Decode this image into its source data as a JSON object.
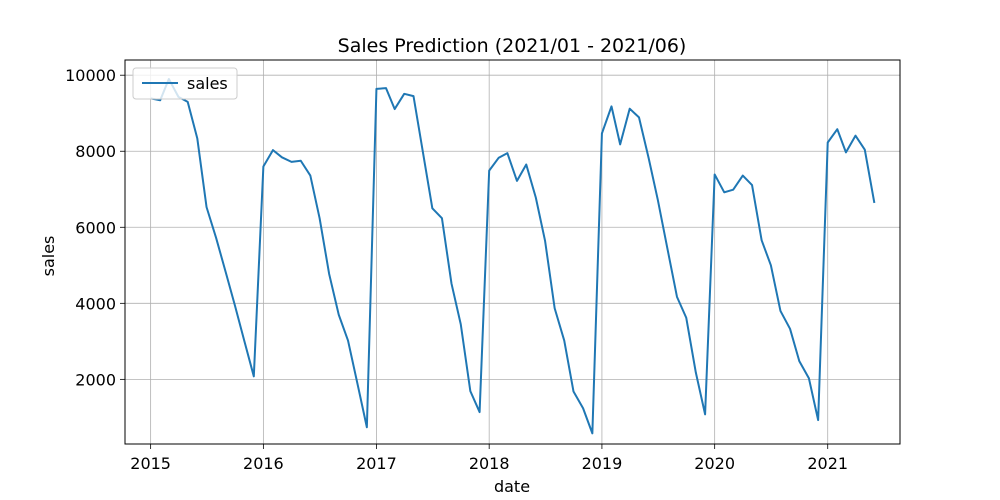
{
  "chart_data": {
    "type": "line",
    "title": "Sales Prediction (2021/01 - 2021/06)",
    "xlabel": "date",
    "ylabel": "sales",
    "x_ticks": [
      "2015",
      "2016",
      "2017",
      "2018",
      "2019",
      "2020",
      "2021"
    ],
    "y_ticks": [
      "2000",
      "4000",
      "6000",
      "8000",
      "10000"
    ],
    "xlim": [
      "2014-10-10",
      "2021-08-23"
    ],
    "ylim": [
      300,
      10400
    ],
    "grid": true,
    "legend": {
      "position": "top-left",
      "entries": [
        "sales"
      ]
    },
    "series_color": "#1f77b4",
    "series": [
      {
        "name": "sales",
        "x": [
          "2015-01-01",
          "2015-02-01",
          "2015-03-01",
          "2015-04-01",
          "2015-05-01",
          "2015-06-01",
          "2015-07-01",
          "2015-08-01",
          "2015-09-01",
          "2015-10-01",
          "2015-11-01",
          "2015-12-01",
          "2016-01-01",
          "2016-02-01",
          "2016-03-01",
          "2016-04-01",
          "2016-05-01",
          "2016-06-01",
          "2016-07-01",
          "2016-08-01",
          "2016-09-01",
          "2016-10-01",
          "2016-11-01",
          "2016-12-01",
          "2017-01-01",
          "2017-02-01",
          "2017-03-01",
          "2017-04-01",
          "2017-05-01",
          "2017-06-01",
          "2017-07-01",
          "2017-08-01",
          "2017-09-01",
          "2017-10-01",
          "2017-11-01",
          "2017-12-01",
          "2018-01-01",
          "2018-02-01",
          "2018-03-01",
          "2018-04-01",
          "2018-05-01",
          "2018-06-01",
          "2018-07-01",
          "2018-08-01",
          "2018-09-01",
          "2018-10-01",
          "2018-11-01",
          "2018-12-01",
          "2019-01-01",
          "2019-02-01",
          "2019-03-01",
          "2019-04-01",
          "2019-05-01",
          "2019-06-01",
          "2019-07-01",
          "2019-08-01",
          "2019-09-01",
          "2019-10-01",
          "2019-11-01",
          "2019-12-01",
          "2020-01-01",
          "2020-02-01",
          "2020-03-01",
          "2020-04-01",
          "2020-05-01",
          "2020-06-01",
          "2020-07-01",
          "2020-08-01",
          "2020-09-01",
          "2020-10-01",
          "2020-11-01",
          "2020-12-01",
          "2021-01-01",
          "2021-02-01",
          "2021-03-01",
          "2021-04-01",
          "2021-05-01",
          "2021-06-01"
        ],
        "y": [
          9390,
          9340,
          9900,
          9430,
          9300,
          8340,
          6530,
          5720,
          4820,
          3940,
          2990,
          2080,
          7600,
          8030,
          7840,
          7720,
          7750,
          7360,
          6240,
          4770,
          3700,
          3020,
          1870,
          740,
          9640,
          9660,
          9110,
          9510,
          9450,
          7950,
          6500,
          6240,
          4520,
          3450,
          1690,
          1140,
          7490,
          7830,
          7950,
          7220,
          7650,
          6780,
          5640,
          3870,
          3020,
          1680,
          1240,
          580,
          8470,
          9180,
          8180,
          9120,
          8890,
          7830,
          6720,
          5440,
          4170,
          3620,
          2180,
          1080,
          7390,
          6920,
          6990,
          7360,
          7110,
          5660,
          5000,
          3800,
          3330,
          2480,
          2030,
          930,
          8230,
          8580,
          7970,
          8410,
          8040,
          6640
        ]
      }
    ]
  }
}
